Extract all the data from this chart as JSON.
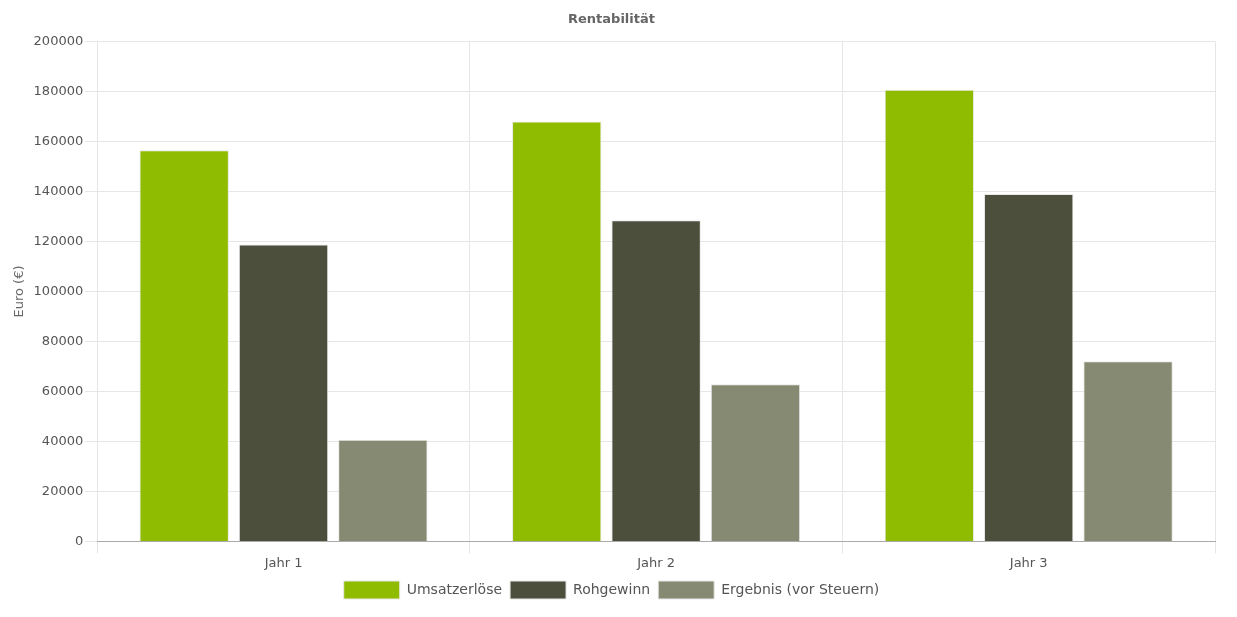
{
  "chart_data": {
    "type": "bar",
    "title": "Rentabilität",
    "ylabel": "Euro (€)",
    "categories": [
      "Jahr 1",
      "Jahr 2",
      "Jahr 3"
    ],
    "series": [
      {
        "name": "Umsatzerlöse",
        "color": "#8fbc00",
        "values": [
          156500,
          168000,
          180700
        ]
      },
      {
        "name": "Rohgewinn",
        "color": "#4b4f3c",
        "values": [
          118800,
          128500,
          139000
        ]
      },
      {
        "name": "Ergebnis (vor Steuern)",
        "color": "#878a72",
        "values": [
          40700,
          62900,
          72100
        ]
      }
    ],
    "ylim": [
      0,
      200000
    ],
    "yticks": [
      0,
      20000,
      40000,
      60000,
      80000,
      100000,
      120000,
      140000,
      160000,
      180000,
      200000
    ],
    "grid": true,
    "legend": "bottom"
  }
}
